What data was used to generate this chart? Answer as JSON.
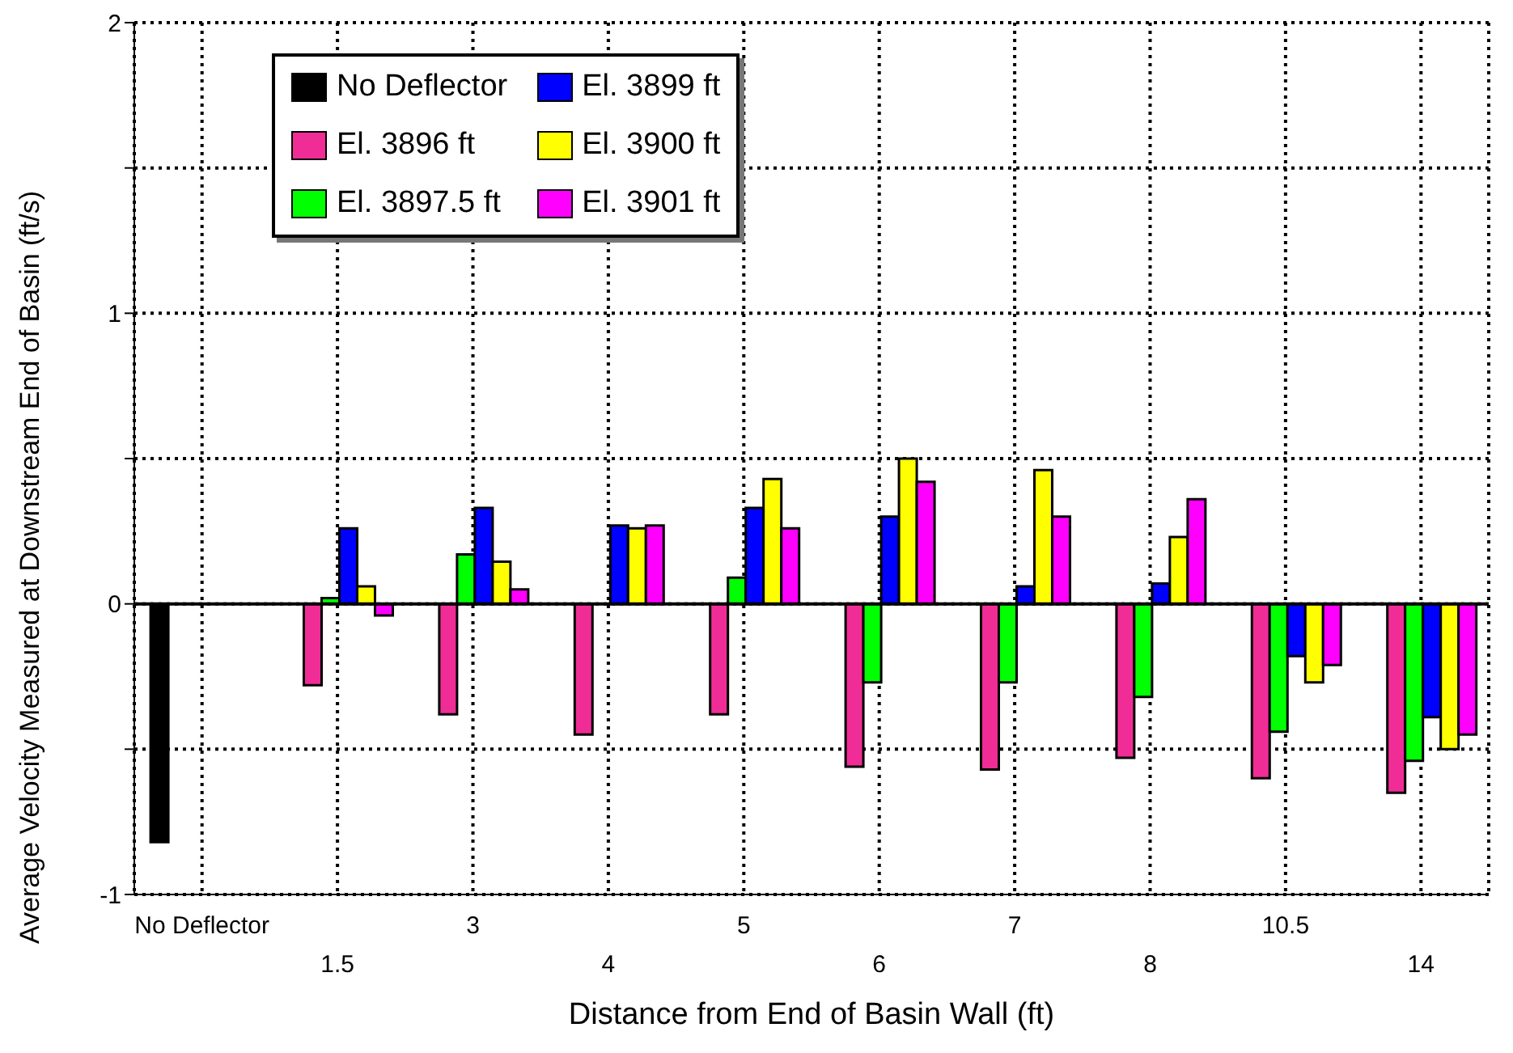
{
  "chart_data": {
    "type": "bar",
    "xlabel": "Distance from End of Basin Wall (ft)",
    "ylabel": "Average Velocity Measured at Downstream End of Basin (ft/s)",
    "categories": [
      "No Deflector",
      "1.5",
      "3",
      "4",
      "5",
      "6",
      "7",
      "8",
      "10.5",
      "14"
    ],
    "series": [
      {
        "name": "No Deflector",
        "color": "#000000",
        "values": [
          -0.82,
          null,
          null,
          null,
          null,
          null,
          null,
          null,
          null,
          null
        ]
      },
      {
        "name": "El. 3896 ft",
        "color": "#f02d96",
        "values": [
          null,
          -0.28,
          -0.38,
          -0.45,
          -0.38,
          -0.56,
          -0.57,
          -0.53,
          -0.6,
          -0.65
        ]
      },
      {
        "name": "El. 3897.5 ft",
        "color": "#00ff00",
        "values": [
          null,
          0.02,
          0.17,
          null,
          0.09,
          -0.27,
          -0.27,
          -0.32,
          -0.44,
          -0.54
        ]
      },
      {
        "name": "El. 3899 ft",
        "color": "#0000ff",
        "values": [
          null,
          0.26,
          0.33,
          0.27,
          0.33,
          0.3,
          0.06,
          0.07,
          -0.18,
          -0.39
        ]
      },
      {
        "name": "El. 3900 ft",
        "color": "#ffff00",
        "values": [
          null,
          0.06,
          0.145,
          0.26,
          0.43,
          0.5,
          0.46,
          0.23,
          -0.27,
          -0.5
        ]
      },
      {
        "name": "El. 3901 ft",
        "color": "#ff00ff",
        "values": [
          null,
          -0.04,
          0.05,
          0.27,
          0.26,
          0.42,
          0.3,
          0.36,
          -0.21,
          -0.45
        ]
      }
    ],
    "ylim": [
      -1,
      2
    ],
    "yticks": [
      -1,
      {
        "value": -0.5,
        "label": null
      },
      0,
      {
        "value": 0.5,
        "label": null
      },
      1,
      {
        "value": 1.5,
        "label": null
      },
      2
    ],
    "grid": true,
    "legend": "top left"
  }
}
